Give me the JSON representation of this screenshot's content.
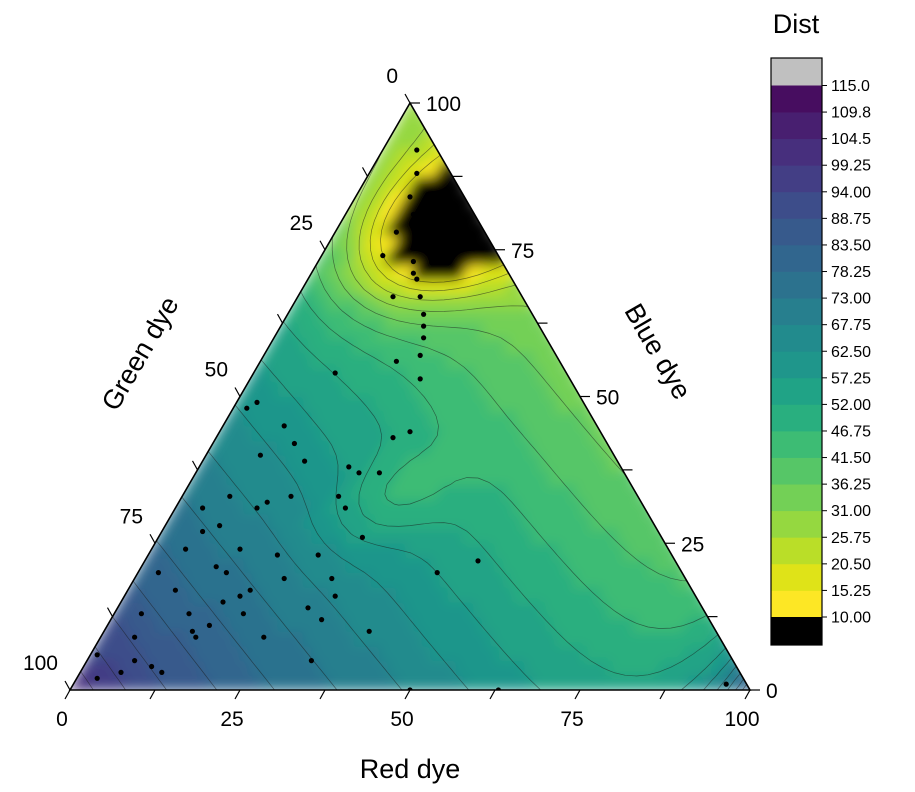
{
  "chart_data": {
    "type": "ternary-contour",
    "axes": {
      "bottom": {
        "label": "Red dye",
        "ticks": [
          "0",
          "25",
          "50",
          "75",
          "100"
        ]
      },
      "left": {
        "label": "Green dye",
        "ticks": [
          "100",
          "75",
          "50",
          "25",
          "0"
        ]
      },
      "right": {
        "label": "Blue dye",
        "ticks": [
          "0",
          "25",
          "50",
          "75",
          "100"
        ]
      }
    },
    "colorbar": {
      "title": "Dist",
      "levels": [
        "10.00",
        "15.25",
        "20.50",
        "25.75",
        "31.00",
        "36.25",
        "41.50",
        "46.75",
        "52.00",
        "57.25",
        "62.50",
        "67.75",
        "73.00",
        "78.25",
        "83.50",
        "88.75",
        "94.00",
        "99.25",
        "104.5",
        "109.8",
        "115.0"
      ],
      "level_values": [
        10,
        15.25,
        20.5,
        25.75,
        31,
        36.25,
        41.5,
        46.75,
        52,
        57.25,
        62.5,
        67.75,
        73,
        78.25,
        83.5,
        88.75,
        94,
        99.25,
        104.5,
        109.75,
        115
      ],
      "below_color": "#000000",
      "above_color": "#c0c0c0",
      "band_colors": [
        "#fde725",
        "#dfe318",
        "#bade28",
        "#95d840",
        "#73d056",
        "#56c667",
        "#3dbc74",
        "#29af7f",
        "#20a386",
        "#1f968b",
        "#228b8d",
        "#277f8e",
        "#2c728e",
        "#31668e",
        "#375a8c",
        "#3d4d8a",
        "#433e85",
        "#472f7d",
        "#481f70",
        "#470d60"
      ]
    },
    "points": [
      {
        "red": 5,
        "blue": 92
      },
      {
        "red": 7,
        "blue": 88
      },
      {
        "red": 8,
        "blue": 84
      },
      {
        "red": 10,
        "blue": 81
      },
      {
        "red": 11,
        "blue": 80
      },
      {
        "red": 12,
        "blue": 78
      },
      {
        "red": 13,
        "blue": 76
      },
      {
        "red": 14,
        "blue": 73
      },
      {
        "red": 15,
        "blue": 71
      },
      {
        "red": 16,
        "blue": 70
      },
      {
        "red": 18,
        "blue": 67
      },
      {
        "red": 20,
        "blue": 64
      },
      {
        "red": 21,
        "blue": 62
      },
      {
        "red": 22,
        "blue": 60
      },
      {
        "red": 23,
        "blue": 57
      },
      {
        "red": 25,
        "blue": 53
      },
      {
        "red": 9,
        "blue": 78
      },
      {
        "red": 9,
        "blue": 74
      },
      {
        "red": 14,
        "blue": 67
      },
      {
        "red": 20,
        "blue": 56
      },
      {
        "red": 12,
        "blue": 54
      },
      {
        "red": 3,
        "blue": 49
      },
      {
        "red": 9,
        "blue": 45
      },
      {
        "red": 12,
        "blue": 42
      },
      {
        "red": 26,
        "blue": 43
      },
      {
        "red": 22,
        "blue": 38
      },
      {
        "red": 24,
        "blue": 37
      },
      {
        "red": 27,
        "blue": 37
      },
      {
        "red": 23,
        "blue": 33
      },
      {
        "red": 16,
        "blue": 33
      },
      {
        "red": 15,
        "blue": 39
      },
      {
        "red": 13,
        "blue": 32
      },
      {
        "red": 12,
        "blue": 31
      },
      {
        "red": 2,
        "blue": 48
      },
      {
        "red": 8,
        "blue": 28
      },
      {
        "red": 8,
        "blue": 40
      },
      {
        "red": 7,
        "blue": 33
      },
      {
        "red": 4,
        "blue": 31
      },
      {
        "red": 6,
        "blue": 27
      },
      {
        "red": 5,
        "blue": 24
      },
      {
        "red": 13,
        "blue": 24
      },
      {
        "red": 11,
        "blue": 21
      },
      {
        "red": 19,
        "blue": 23
      },
      {
        "red": 25,
        "blue": 23
      },
      {
        "red": 30,
        "blue": 26
      },
      {
        "red": 25,
        "blue": 31
      },
      {
        "red": 28,
        "blue": 44
      },
      {
        "red": 22,
        "blue": 19
      },
      {
        "red": 18,
        "blue": 17
      },
      {
        "red": 17,
        "blue": 16
      },
      {
        "red": 13,
        "blue": 20
      },
      {
        "red": 7,
        "blue": 17
      },
      {
        "red": 3,
        "blue": 20
      },
      {
        "red": 4,
        "blue": 13
      },
      {
        "red": 5,
        "blue": 9
      },
      {
        "red": 11,
        "blue": 13
      },
      {
        "red": 13,
        "blue": 10
      },
      {
        "red": 28,
        "blue": 14
      },
      {
        "red": 19,
        "blue": 13
      },
      {
        "red": 15,
        "blue": 15
      },
      {
        "red": 29,
        "blue": 19
      },
      {
        "red": 1,
        "blue": 6
      },
      {
        "red": 7,
        "blue": 5
      },
      {
        "red": 6,
        "blue": 3
      },
      {
        "red": 3,
        "blue": 2
      },
      {
        "red": 12,
        "blue": 3
      },
      {
        "red": 15,
        "blue": 11
      },
      {
        "red": 14,
        "blue": 9
      },
      {
        "red": 10,
        "blue": 4
      },
      {
        "red": 24,
        "blue": 9
      },
      {
        "red": 50,
        "blue": 0
      },
      {
        "red": 63,
        "blue": 0
      },
      {
        "red": 96,
        "blue": 1
      },
      {
        "red": 33,
        "blue": 5
      },
      {
        "red": 39,
        "blue": 10
      },
      {
        "red": 31,
        "blue": 12
      },
      {
        "red": 31,
        "blue": 16
      },
      {
        "red": 44,
        "blue": 20
      },
      {
        "red": 49,
        "blue": 22
      }
    ]
  }
}
